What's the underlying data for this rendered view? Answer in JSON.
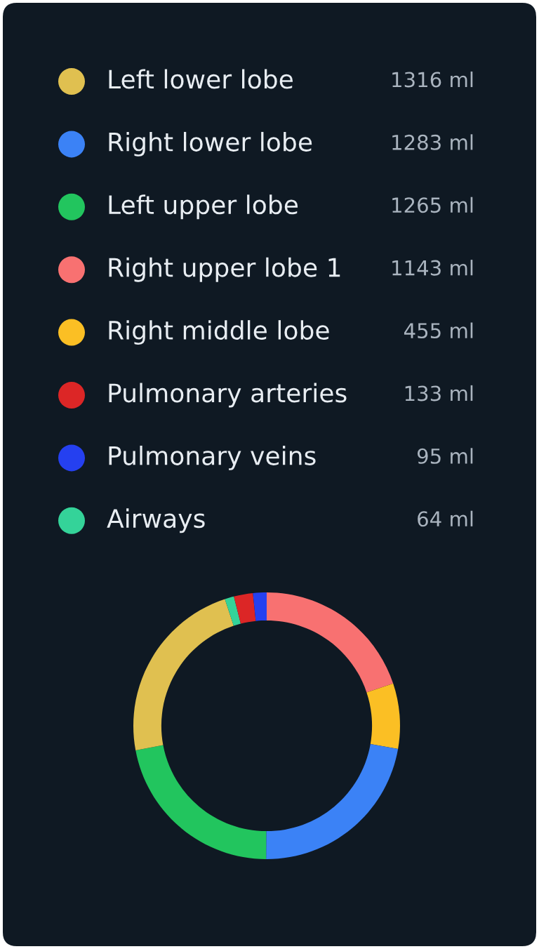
{
  "chart_data": {
    "type": "donut",
    "categories": [
      "Right upper lobe 1",
      "Right middle lobe",
      "Right lower lobe",
      "Left upper lobe",
      "Left lower lobe",
      "Airways",
      "Pulmonary arteries",
      "Pulmonary veins"
    ],
    "values": [
      1143,
      455,
      1283,
      1265,
      1316,
      64,
      133,
      95
    ],
    "value_labels": [
      "1143 ml",
      "455 ml",
      "1283 ml",
      "1265 ml",
      "1316 ml",
      "64 ml",
      "133 ml",
      "95 ml"
    ],
    "colors": [
      "#f87171",
      "#fbbf24",
      "#3b82f6",
      "#22c55e",
      "#e0c050",
      "#34d399",
      "#dc2626",
      "#2540f0"
    ],
    "legend": "top"
  }
}
